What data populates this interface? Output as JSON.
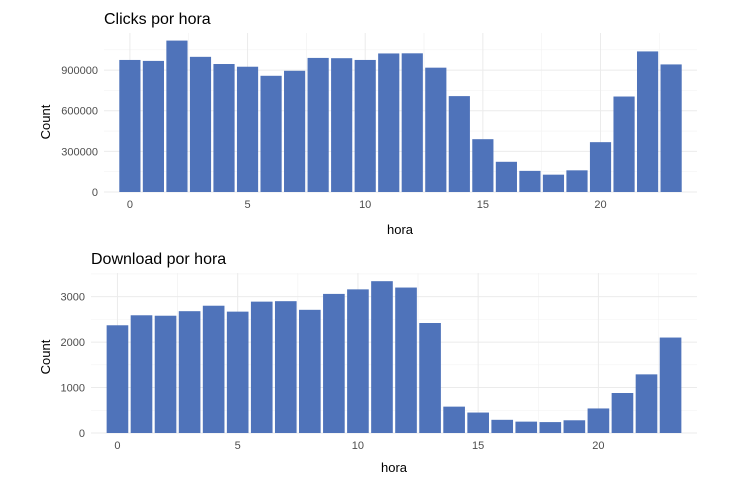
{
  "colors": {
    "bar": "#4F73BA",
    "background": "#ffffff"
  },
  "chart_data": [
    {
      "type": "bar",
      "title": "Clicks por hora",
      "xlabel": "hora",
      "ylabel": "Count",
      "x": [
        0,
        1,
        2,
        3,
        4,
        5,
        6,
        7,
        8,
        9,
        10,
        11,
        12,
        13,
        14,
        15,
        16,
        17,
        18,
        19,
        20,
        21,
        22,
        23
      ],
      "values": [
        975000,
        968000,
        1118000,
        998000,
        945000,
        925000,
        858000,
        895000,
        990000,
        988000,
        975000,
        1023000,
        1024000,
        918000,
        708000,
        390000,
        223000,
        156000,
        128000,
        160000,
        368000,
        705000,
        1038000,
        942000
      ],
      "xticks": [
        0,
        5,
        10,
        15,
        20
      ],
      "xtick_labels": [
        "0",
        "5",
        "10",
        "15",
        "20"
      ],
      "yticks": [
        0,
        300000,
        600000,
        900000
      ],
      "ytick_labels": [
        "0",
        "300000",
        "600000",
        "900000"
      ],
      "xlim": [
        -1.1,
        24.1
      ],
      "ylim": [
        0,
        1174000
      ],
      "grid": true,
      "legend": "none"
    },
    {
      "type": "bar",
      "title": "Download por hora",
      "xlabel": "hora",
      "ylabel": "Count",
      "x": [
        0,
        1,
        2,
        3,
        4,
        5,
        6,
        7,
        8,
        9,
        10,
        11,
        12,
        13,
        14,
        15,
        16,
        17,
        18,
        19,
        20,
        21,
        22,
        23
      ],
      "values": [
        2370,
        2590,
        2580,
        2680,
        2800,
        2670,
        2890,
        2900,
        2710,
        3060,
        3160,
        3340,
        3200,
        2420,
        580,
        450,
        290,
        250,
        240,
        280,
        540,
        880,
        1290,
        2100
      ],
      "xticks": [
        0,
        5,
        10,
        15,
        20
      ],
      "xtick_labels": [
        "0",
        "5",
        "10",
        "15",
        "20"
      ],
      "yticks": [
        0,
        1000,
        2000,
        3000
      ],
      "ytick_labels": [
        "0",
        "1000",
        "2000",
        "3000"
      ],
      "xlim": [
        -1.1,
        24.1
      ],
      "ylim": [
        0,
        3520
      ],
      "grid": true,
      "legend": "none"
    }
  ]
}
